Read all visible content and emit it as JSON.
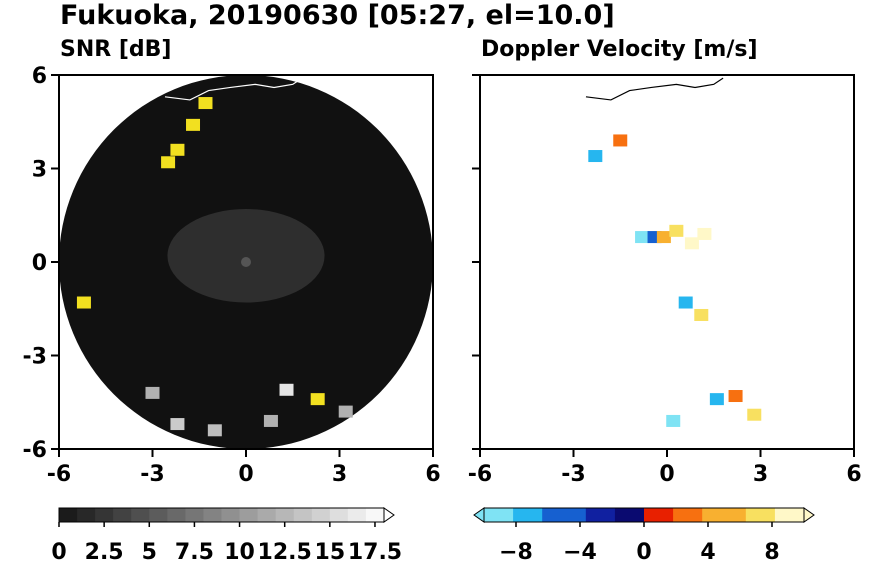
{
  "title": "Fukuoka, 20190630 [05:27, el=10.0]",
  "colors": {
    "radar_bg": "#111111",
    "echo": "#f2e020",
    "coast": "#000000",
    "coast_on_dark": "#ffffff"
  },
  "chart_data": [
    {
      "type": "heatmap",
      "title": "SNR [dB]",
      "xlim": [
        -6,
        6
      ],
      "ylim": [
        -6,
        6
      ],
      "x_ticks": [
        "-6",
        "-3",
        "0",
        "3",
        "6"
      ],
      "y_ticks": [
        "6",
        "3",
        "0",
        "-3",
        "-6"
      ],
      "range_circle_radius": 6,
      "colorbar": {
        "label_ticks": [
          "0",
          "2.5",
          "5",
          "7.5",
          "10",
          "12.5",
          "15",
          "17.5"
        ],
        "vmin": 0,
        "vmax": 18,
        "extend": "max",
        "scale": "grayscale"
      },
      "echo_cells": [
        {
          "x": -1.7,
          "y": 4.4,
          "value": 18
        },
        {
          "x": -2.2,
          "y": 3.6,
          "value": 18
        },
        {
          "x": -2.5,
          "y": 3.2,
          "value": 17
        },
        {
          "x": -1.3,
          "y": 5.1,
          "value": 18
        },
        {
          "x": -5.2,
          "y": -1.3,
          "value": 17
        },
        {
          "x": 2.3,
          "y": -4.4,
          "value": 18
        },
        {
          "x": 1.3,
          "y": -4.1,
          "value": 16
        },
        {
          "x": -2.2,
          "y": -5.2,
          "value": 14
        },
        {
          "x": -1.0,
          "y": -5.4,
          "value": 13
        },
        {
          "x": 0.8,
          "y": -5.1,
          "value": 12
        },
        {
          "x": -3.0,
          "y": -4.2,
          "value": 12
        },
        {
          "x": 3.2,
          "y": -4.8,
          "value": 12
        }
      ]
    },
    {
      "type": "heatmap",
      "title": "Doppler Velocity [m/s]",
      "xlim": [
        -6,
        6
      ],
      "ylim": [
        -6,
        6
      ],
      "x_ticks": [
        "-6",
        "-3",
        "0",
        "3",
        "6"
      ],
      "y_ticks": [
        "6",
        "3",
        "0",
        "-3",
        "-6"
      ],
      "colorbar": {
        "label_ticks": [
          "−8",
          "−4",
          "0",
          "4",
          "8"
        ],
        "vmin": -10,
        "vmax": 10,
        "extend": "both",
        "scale": "diverging blue-red"
      },
      "echo_cells": [
        {
          "x": -0.8,
          "y": 0.8,
          "value": -8
        },
        {
          "x": -0.4,
          "y": 0.8,
          "value": -5
        },
        {
          "x": -0.1,
          "y": 0.8,
          "value": 5
        },
        {
          "x": 0.3,
          "y": 1.0,
          "value": 8
        },
        {
          "x": 0.8,
          "y": 0.6,
          "value": 9
        },
        {
          "x": 1.2,
          "y": 0.9,
          "value": 9
        },
        {
          "x": -2.3,
          "y": 3.4,
          "value": -7
        },
        {
          "x": -1.5,
          "y": 3.9,
          "value": 4
        },
        {
          "x": 0.6,
          "y": -1.3,
          "value": -7
        },
        {
          "x": 1.1,
          "y": -1.7,
          "value": 7
        },
        {
          "x": 1.6,
          "y": -4.4,
          "value": -6
        },
        {
          "x": 2.2,
          "y": -4.3,
          "value": 3
        },
        {
          "x": 0.2,
          "y": -5.1,
          "value": -9
        },
        {
          "x": 2.8,
          "y": -4.9,
          "value": 7
        }
      ]
    }
  ]
}
